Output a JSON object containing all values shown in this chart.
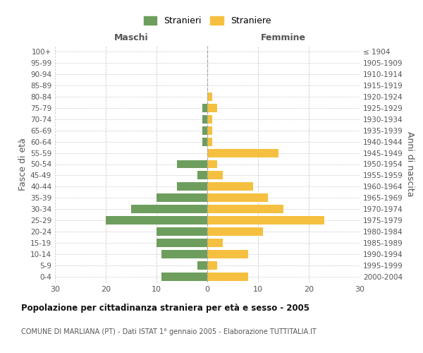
{
  "age_groups_bottom_to_top": [
    "0-4",
    "5-9",
    "10-14",
    "15-19",
    "20-24",
    "25-29",
    "30-34",
    "35-39",
    "40-44",
    "45-49",
    "50-54",
    "55-59",
    "60-64",
    "65-69",
    "70-74",
    "75-79",
    "80-84",
    "85-89",
    "90-94",
    "95-99",
    "100+"
  ],
  "birth_years_bottom_to_top": [
    "2000-2004",
    "1995-1999",
    "1990-1994",
    "1985-1989",
    "1980-1984",
    "1975-1979",
    "1970-1974",
    "1965-1969",
    "1960-1964",
    "1955-1959",
    "1950-1954",
    "1945-1949",
    "1940-1944",
    "1935-1939",
    "1930-1934",
    "1925-1929",
    "1920-1924",
    "1915-1919",
    "1910-1914",
    "1905-1909",
    "≤ 1904"
  ],
  "maschi_bottom_to_top": [
    9,
    2,
    9,
    10,
    10,
    20,
    15,
    10,
    6,
    2,
    6,
    0,
    1,
    1,
    1,
    1,
    0,
    0,
    0,
    0,
    0
  ],
  "femmine_bottom_to_top": [
    8,
    2,
    8,
    3,
    11,
    23,
    15,
    12,
    9,
    3,
    2,
    14,
    1,
    1,
    1,
    2,
    1,
    0,
    0,
    0,
    0
  ],
  "color_maschi": "#6e9e5e",
  "color_femmine": "#f5c040",
  "title": "Popolazione per cittadinanza straniera per età e sesso - 2005",
  "subtitle": "COMUNE DI MARLIANA (PT) - Dati ISTAT 1° gennaio 2005 - Elaborazione TUTTITALIA.IT",
  "label_maschi": "Stranieri",
  "label_femmine": "Straniere",
  "header_left": "Maschi",
  "header_right": "Femmine",
  "ylabel_left": "Fasce di età",
  "ylabel_right": "Anni di nascita",
  "xlim": 30,
  "background_color": "#ffffff",
  "grid_color": "#cccccc"
}
